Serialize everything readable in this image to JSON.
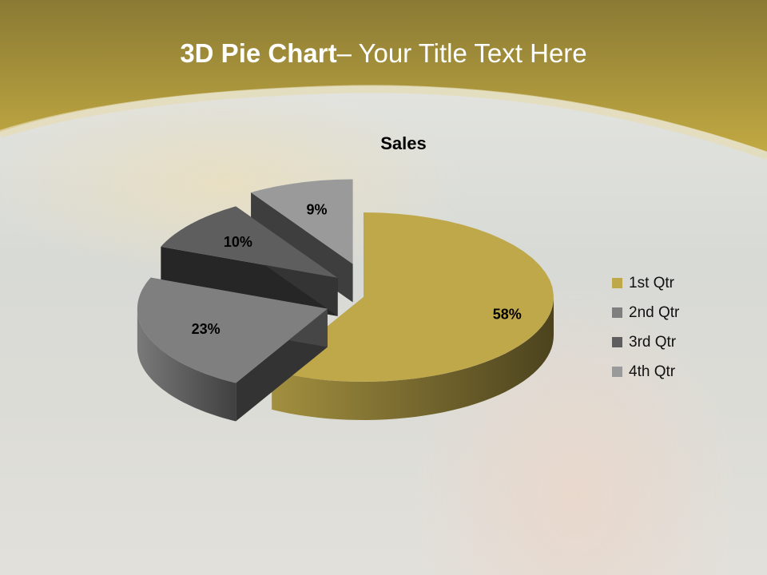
{
  "slide": {
    "title_bold": "3D Pie Chart",
    "title_rest": "– Your Title Text Here"
  },
  "chart_data": {
    "type": "pie",
    "style": "3d-exploded",
    "title": "Sales",
    "categories": [
      "1st Qtr",
      "2nd Qtr",
      "3rd Qtr",
      "4th Qtr"
    ],
    "values": [
      58,
      23,
      10,
      9
    ],
    "data_labels": [
      "58%",
      "23%",
      "10%",
      "9%"
    ],
    "colors": [
      "#bfa84a",
      "#7f7f7f",
      "#5e5e5e",
      "#9a9a9a"
    ],
    "legend_position": "right"
  },
  "theme": {
    "header_color": "#b09a3a"
  }
}
